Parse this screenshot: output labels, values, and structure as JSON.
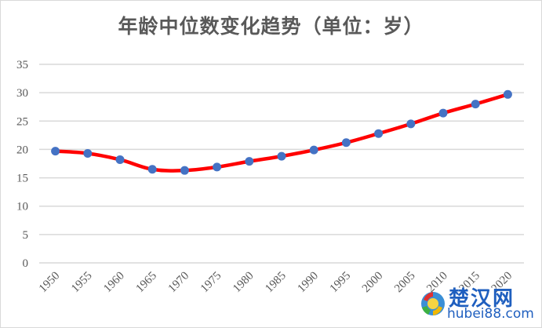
{
  "chart_data": {
    "type": "line",
    "title": "年龄中位数变化趋势（单位：岁）",
    "xlabel": "",
    "ylabel": "",
    "categories": [
      "1950",
      "1955",
      "1960",
      "1965",
      "1970",
      "1975",
      "1980",
      "1985",
      "1990",
      "1995",
      "2000",
      "2005",
      "2010",
      "2015",
      "2020"
    ],
    "series": [
      {
        "name": "年龄中位数",
        "values": [
          19.7,
          19.3,
          18.2,
          16.5,
          16.3,
          16.9,
          17.9,
          18.8,
          19.9,
          21.2,
          22.8,
          24.5,
          26.4,
          28.0,
          29.7
        ],
        "line_color": "#ff0000",
        "marker_color": "#4472c4",
        "smooth": true
      }
    ],
    "ylim": [
      0,
      35
    ],
    "yticks": [
      0,
      5,
      10,
      15,
      20,
      25,
      30,
      35
    ],
    "grid": true,
    "legend": "none"
  },
  "watermark": {
    "cn": "楚汉网",
    "en": "hubei88.com"
  }
}
